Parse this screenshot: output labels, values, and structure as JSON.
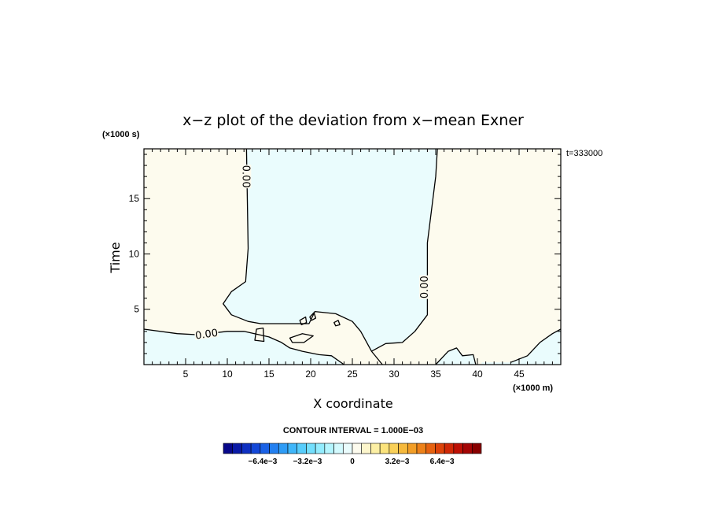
{
  "chart_data": {
    "type": "contour",
    "title": "x−z plot of the deviation from x−mean Exner",
    "xlabel": "X coordinate",
    "ylabel": "Time",
    "x_unit": "(×1000 m)",
    "y_unit": "(×1000 s)",
    "time_label": "t=333000",
    "xlim": [
      0,
      50
    ],
    "ylim": [
      0,
      19.5
    ],
    "x_ticks": [
      5,
      10,
      15,
      20,
      25,
      30,
      35,
      40,
      45
    ],
    "y_ticks": [
      5,
      10,
      15
    ],
    "contour_interval_label": "CONTOUR INTERVAL = 1.000E−03",
    "contour_label": "0.00",
    "regions": [
      {
        "name": "negative-central",
        "color": "#eafcfd",
        "boundary": [
          [
            12.3,
            19.5
          ],
          [
            12.5,
            10.5
          ],
          [
            12.2,
            7.5
          ],
          [
            10.5,
            6.6
          ],
          [
            9.5,
            5.5
          ],
          [
            10.5,
            4.5
          ],
          [
            12.5,
            3.9
          ],
          [
            14,
            3.7
          ],
          [
            19.8,
            3.7
          ],
          [
            20.5,
            4.8
          ],
          [
            23,
            4.6
          ],
          [
            25,
            3.9
          ],
          [
            26,
            3
          ],
          [
            27.3,
            1.2
          ],
          [
            28.6,
            0
          ],
          [
            35,
            0
          ],
          [
            36.5,
            1.2
          ],
          [
            37.5,
            1.5
          ],
          [
            38.2,
            0.8
          ],
          [
            39.5,
            0.9
          ],
          [
            39.8,
            0
          ],
          [
            40.5,
            0
          ],
          [
            40.5,
            0.2
          ],
          [
            44,
            0.2
          ],
          [
            46,
            0.8
          ],
          [
            47.5,
            2
          ],
          [
            49,
            2.8
          ],
          [
            50,
            3.2
          ],
          [
            50,
            0
          ],
          [
            0,
            0
          ],
          [
            0,
            3.2
          ],
          [
            4,
            2.8
          ],
          [
            6.5,
            2.7
          ],
          [
            10,
            3
          ],
          [
            12,
            3
          ],
          [
            15,
            2.5
          ],
          [
            16.5,
            2
          ],
          [
            17.5,
            1.5
          ],
          [
            19,
            1.2
          ],
          [
            21,
            0.9
          ],
          [
            22.5,
            0.8
          ],
          [
            24,
            0
          ],
          [
            28.6,
            0
          ],
          [
            27.3,
            1.2
          ],
          [
            29,
            1.9
          ],
          [
            31,
            2
          ],
          [
            32.5,
            3
          ],
          [
            34,
            4.5
          ],
          [
            34,
            6.5
          ],
          [
            34,
            9
          ],
          [
            34,
            11
          ],
          [
            34.5,
            14
          ],
          [
            35,
            17
          ],
          [
            35.2,
            19.5
          ]
        ]
      },
      {
        "name": "negative-lower-left",
        "color": "#eafcfd",
        "boundary": [
          [
            0,
            0
          ],
          [
            0,
            3.2
          ],
          [
            4,
            2.8
          ],
          [
            6.5,
            2.7
          ],
          [
            10,
            3
          ],
          [
            12,
            3
          ],
          [
            15,
            2.5
          ],
          [
            16.5,
            2
          ],
          [
            17.5,
            1.5
          ],
          [
            19,
            1.2
          ],
          [
            21,
            0.9
          ],
          [
            22.5,
            0.8
          ],
          [
            24,
            0
          ]
        ]
      }
    ],
    "contours": [
      {
        "name": "zero-line-left",
        "points": [
          [
            12.3,
            19.5
          ],
          [
            12.5,
            10.5
          ],
          [
            12.2,
            7.5
          ],
          [
            10.5,
            6.6
          ],
          [
            9.5,
            5.5
          ],
          [
            10.5,
            4.5
          ],
          [
            12.5,
            3.9
          ],
          [
            14,
            3.7
          ],
          [
            19.8,
            3.7
          ],
          [
            20.5,
            4.8
          ],
          [
            23,
            4.6
          ],
          [
            25,
            3.9
          ],
          [
            26,
            3
          ],
          [
            27.3,
            1.2
          ],
          [
            28.6,
            0
          ]
        ]
      },
      {
        "name": "zero-line-right",
        "points": [
          [
            35.2,
            19.5
          ],
          [
            35,
            17
          ],
          [
            34.5,
            14
          ],
          [
            34,
            11
          ],
          [
            34,
            9
          ],
          [
            34,
            6.5
          ],
          [
            34,
            4.5
          ],
          [
            32.5,
            3
          ],
          [
            31,
            2
          ],
          [
            29,
            1.9
          ],
          [
            27.3,
            1.2
          ]
        ]
      },
      {
        "name": "zero-line-lower",
        "points": [
          [
            0,
            3.2
          ],
          [
            4,
            2.8
          ],
          [
            6.5,
            2.7
          ],
          [
            10,
            3
          ],
          [
            12,
            3
          ],
          [
            15,
            2.5
          ],
          [
            16.5,
            2
          ],
          [
            17.5,
            1.5
          ],
          [
            19,
            1.2
          ],
          [
            21,
            0.9
          ],
          [
            22.5,
            0.8
          ],
          [
            24,
            0
          ]
        ]
      },
      {
        "name": "zero-line-bottom-right",
        "points": [
          [
            35,
            0
          ],
          [
            36.5,
            1.2
          ],
          [
            37.5,
            1.5
          ],
          [
            38.2,
            0.8
          ],
          [
            39.5,
            0.9
          ],
          [
            39.8,
            0
          ]
        ]
      },
      {
        "name": "zero-line-far-right",
        "points": [
          [
            44,
            0.2
          ],
          [
            46,
            0.8
          ],
          [
            47.5,
            2
          ],
          [
            49,
            2.8
          ],
          [
            50,
            3.2
          ]
        ]
      }
    ],
    "closed_contours": [
      {
        "name": "small-loop-a",
        "points": [
          [
            13.5,
            3.2
          ],
          [
            14.3,
            3.3
          ],
          [
            14.4,
            2.1
          ],
          [
            13.3,
            2.2
          ]
        ]
      },
      {
        "name": "small-loop-b",
        "points": [
          [
            17.5,
            2.4
          ],
          [
            19,
            2.8
          ],
          [
            20.3,
            2.6
          ],
          [
            19.2,
            2.0
          ],
          [
            17.8,
            2.0
          ]
        ]
      },
      {
        "name": "small-loop-c",
        "points": [
          [
            18.7,
            4.0
          ],
          [
            19.4,
            4.3
          ],
          [
            19.5,
            3.8
          ],
          [
            18.9,
            3.6
          ]
        ]
      },
      {
        "name": "small-loop-d",
        "points": [
          [
            19.9,
            4.3
          ],
          [
            20.4,
            4.7
          ],
          [
            20.6,
            4.2
          ],
          [
            20.1,
            4.0
          ]
        ]
      },
      {
        "name": "small-loop-e",
        "points": [
          [
            22.8,
            3.8
          ],
          [
            23.3,
            4.0
          ],
          [
            23.5,
            3.6
          ],
          [
            23.0,
            3.5
          ]
        ]
      }
    ],
    "colorbar": {
      "colors": [
        "#08088a",
        "#0a1aa6",
        "#0f30c2",
        "#1448d8",
        "#1b62e6",
        "#2380f0",
        "#2e9cf6",
        "#3fb6fa",
        "#57cdfc",
        "#73dffd",
        "#93ecfe",
        "#b4f5fe",
        "#d3fafe",
        "#eafcfd",
        "#fdfbee",
        "#fdf6cc",
        "#fcefa4",
        "#fbe37c",
        "#f9d058",
        "#f6b93c",
        "#f29e27",
        "#ed8119",
        "#e66210",
        "#dd430a",
        "#d02807",
        "#bd1005",
        "#a40505",
        "#880000"
      ],
      "tick_labels": [
        "−6.4e−3",
        "−3.2e−3",
        "0",
        "3.2e−3",
        "6.4e−3"
      ],
      "tick_values": [
        -0.0064,
        -0.0032,
        0,
        0.0032,
        0.0064
      ],
      "range": [
        -0.0092,
        0.0092
      ]
    },
    "colors": {
      "positive_fill": "#fdfbee",
      "negative_fill": "#eafcfd",
      "contour_line": "#000000"
    }
  }
}
